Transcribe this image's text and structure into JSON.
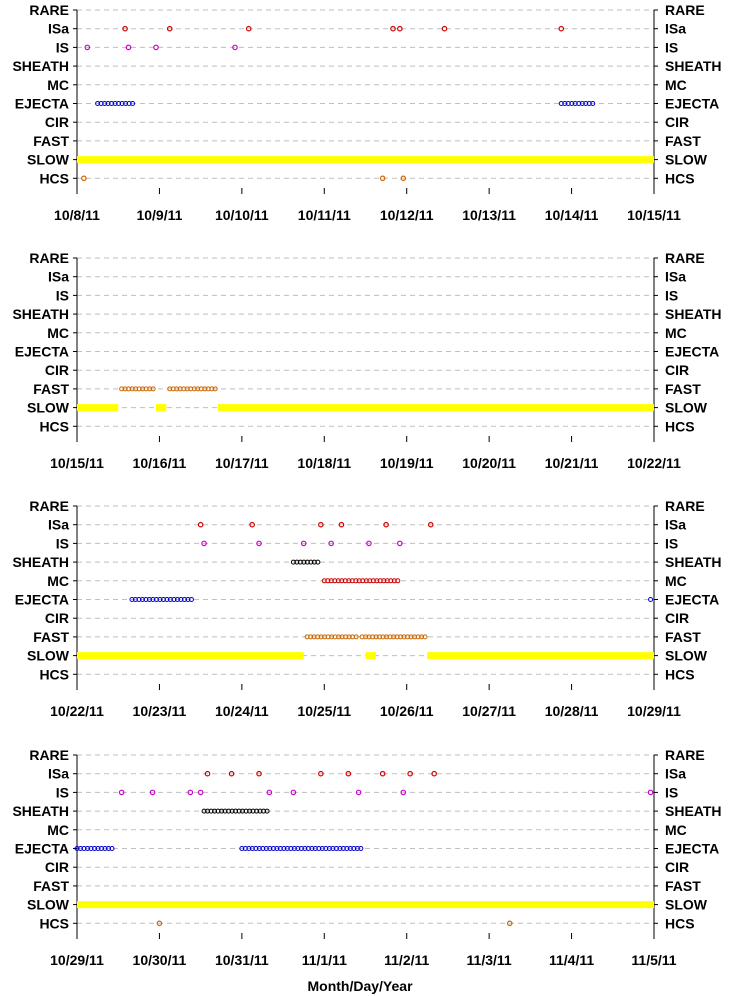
{
  "chart_data": {
    "type": "scatter",
    "xlabel": "Month/Day/Year",
    "categories": [
      "RARE",
      "ISa",
      "IS",
      "SHEATH",
      "MC",
      "EJECTA",
      "CIR",
      "FAST",
      "SLOW",
      "HCS"
    ],
    "grid": "horizontal dashed",
    "colors": {
      "ISa": "#cc0000",
      "IS": "#cc00cc",
      "SHEATH": "#000000",
      "MC": "#cc0000",
      "EJECTA": "#0000cc",
      "FAST": "#cc6600",
      "SLOW": "#ffff00",
      "HCS": "#cc6600"
    },
    "panels": [
      {
        "xlim": [
          "10/8/11",
          "10/15/11"
        ],
        "start": "2011-10-08",
        "ticks": [
          "10/8/11",
          "10/9/11",
          "10/10/11",
          "10/11/11",
          "10/12/11",
          "10/13/11",
          "10/14/11",
          "10/15/11"
        ],
        "markers": [
          {
            "cat": "ISa",
            "x": [
              "10/8/11 14:00",
              "10/9/11 03:00",
              "10/10/11 02:00",
              "10/11/11 20:00",
              "10/11/11 22:00",
              "10/12/11 11:00",
              "10/13/11 21:00"
            ]
          },
          {
            "cat": "IS",
            "x": [
              "10/8/11 03:00",
              "10/8/11 15:00",
              "10/8/11 23:00",
              "10/9/11 22:00"
            ]
          },
          {
            "cat": "HCS",
            "x": [
              "10/8/11 02:00",
              "10/11/11 17:00",
              "10/11/11 23:00"
            ]
          }
        ],
        "ranges": [
          {
            "cat": "EJECTA",
            "from": "10/8/11 06:00",
            "to": "10/8/11 17:00"
          },
          {
            "cat": "EJECTA",
            "from": "10/13/11 21:00",
            "to": "10/14/11 07:00"
          },
          {
            "cat": "SLOW",
            "from": "10/8/11 00:00",
            "to": "10/15/11 00:00"
          }
        ]
      },
      {
        "xlim": [
          "10/15/11",
          "10/22/11"
        ],
        "start": "2011-10-15",
        "ticks": [
          "10/15/11",
          "10/16/11",
          "10/17/11",
          "10/18/11",
          "10/19/11",
          "10/20/11",
          "10/21/11",
          "10/22/11"
        ],
        "markers": [],
        "ranges": [
          {
            "cat": "FAST",
            "from": "10/15/11 13:00",
            "to": "10/15/11 23:00"
          },
          {
            "cat": "FAST",
            "from": "10/16/11 03:00",
            "to": "10/16/11 17:00"
          },
          {
            "cat": "SLOW",
            "from": "10/15/11 00:00",
            "to": "10/15/11 12:00"
          },
          {
            "cat": "SLOW",
            "from": "10/15/11 23:00",
            "to": "10/16/11 02:00"
          },
          {
            "cat": "SLOW",
            "from": "10/16/11 17:00",
            "to": "10/22/11 00:00"
          }
        ]
      },
      {
        "xlim": [
          "10/22/11",
          "10/29/11"
        ],
        "start": "2011-10-22",
        "ticks": [
          "10/22/11",
          "10/23/11",
          "10/24/11",
          "10/25/11",
          "10/26/11",
          "10/27/11",
          "10/28/11",
          "10/29/11"
        ],
        "markers": [
          {
            "cat": "ISa",
            "x": [
              "10/23/11 12:00",
              "10/24/11 03:00",
              "10/24/11 23:00",
              "10/25/11 05:00",
              "10/25/11 18:00",
              "10/26/11 07:00"
            ]
          },
          {
            "cat": "IS",
            "x": [
              "10/23/11 13:00",
              "10/24/11 05:00",
              "10/24/11 18:00",
              "10/25/11 02:00",
              "10/25/11 13:00",
              "10/25/11 22:00"
            ]
          }
        ],
        "ranges": [
          {
            "cat": "SHEATH",
            "from": "10/24/11 15:00",
            "to": "10/24/11 23:00"
          },
          {
            "cat": "MC",
            "from": "10/25/11 00:00",
            "to": "10/25/11 22:00"
          },
          {
            "cat": "EJECTA",
            "from": "10/22/11 16:00",
            "to": "10/23/11 10:00"
          },
          {
            "cat": "EJECTA",
            "from": "10/28/11 23:00",
            "to": "10/29/11 00:00"
          },
          {
            "cat": "FAST",
            "from": "10/24/11 19:00",
            "to": "10/25/11 10:00"
          },
          {
            "cat": "FAST",
            "from": "10/25/11 11:00",
            "to": "10/26/11 06:00"
          },
          {
            "cat": "SLOW",
            "from": "10/22/11 00:00",
            "to": "10/24/11 18:00"
          },
          {
            "cat": "SLOW",
            "from": "10/25/11 12:00",
            "to": "10/25/11 15:00"
          },
          {
            "cat": "SLOW",
            "from": "10/26/11 06:00",
            "to": "10/29/11 00:00"
          }
        ]
      },
      {
        "xlim": [
          "10/29/11",
          "11/5/11"
        ],
        "start": "2011-10-29",
        "ticks": [
          "10/29/11",
          "10/30/11",
          "10/31/11",
          "11/1/11",
          "11/2/11",
          "11/3/11",
          "11/4/11",
          "11/5/11"
        ],
        "markers": [
          {
            "cat": "ISa",
            "x": [
              "10/30/11 14:00",
              "10/30/11 21:00",
              "10/31/11 05:00",
              "10/31/11 23:00",
              "11/1/11 07:00",
              "11/1/11 17:00",
              "11/2/11 01:00",
              "11/2/11 08:00"
            ]
          },
          {
            "cat": "IS",
            "x": [
              "10/29/11 13:00",
              "10/29/11 22:00",
              "10/30/11 09:00",
              "10/30/11 12:00",
              "10/31/11 08:00",
              "10/31/11 15:00",
              "11/1/11 10:00",
              "11/1/11 23:00",
              "11/4/11 23:00"
            ]
          },
          {
            "cat": "HCS",
            "x": [
              "10/30/11 00:00",
              "11/3/11 06:00"
            ]
          }
        ],
        "ranges": [
          {
            "cat": "SHEATH",
            "from": "10/30/11 13:00",
            "to": "10/31/11 08:00"
          },
          {
            "cat": "EJECTA",
            "from": "10/29/11 00:00",
            "to": "10/29/11 11:00"
          },
          {
            "cat": "EJECTA",
            "from": "10/31/11 00:00",
            "to": "11/1/11 11:00"
          },
          {
            "cat": "SLOW",
            "from": "10/29/11 00:00",
            "to": "11/5/11 00:00"
          }
        ]
      }
    ]
  }
}
